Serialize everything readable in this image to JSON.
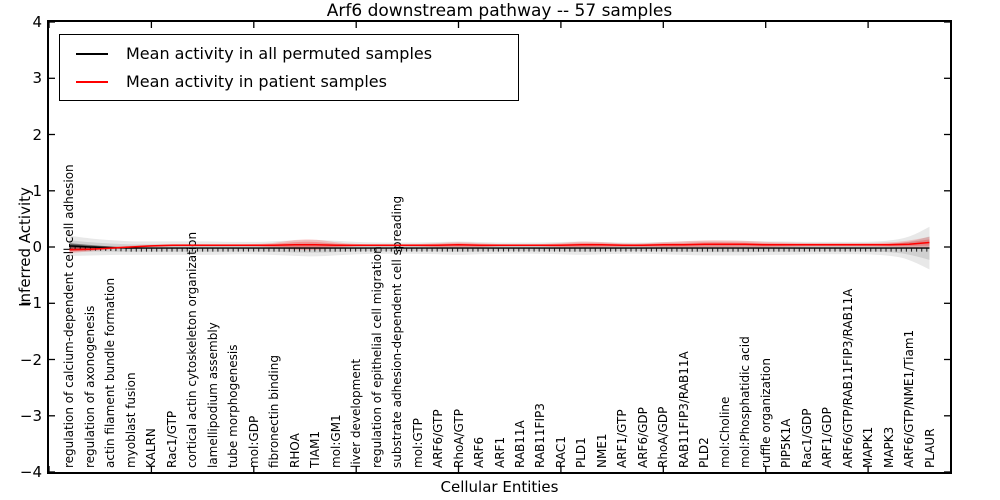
{
  "chart_data": {
    "type": "line",
    "title": "Arf6 downstream pathway -- 57 samples",
    "xlabel": "Cellular Entities",
    "ylabel": "Inferred Activity",
    "ylim": [
      -4,
      4
    ],
    "yticks": [
      4,
      3,
      2,
      1,
      0,
      -1,
      -2,
      -3,
      -4
    ],
    "grid": false,
    "legend_position": "upper left",
    "categories": [
      "regulation of calcium-dependent cell-cell adhesion",
      "regulation of axonogenesis",
      "actin filament bundle formation",
      "myoblast fusion",
      "KALRN",
      "Rac1/GTP",
      "cortical actin cytoskeleton organization",
      "lamellipodium assembly",
      "tube morphogenesis",
      "mol:GDP",
      "fibronectin binding",
      "RHOA",
      "TIAM1",
      "mol:GM1",
      "liver development",
      "regulation of epithelial cell migration",
      "substrate adhesion-dependent cell spreading",
      "mol:GTP",
      "ARF6/GTP",
      "RhoA/GTP",
      "ARF6",
      "ARF1",
      "RAB11A",
      "RAB11FIP3",
      "RAC1",
      "PLD1",
      "NME1",
      "ARF1/GTP",
      "ARF6/GDP",
      "RhoA/GDP",
      "RAB11FIP3/RAB11A",
      "PLD2",
      "mol:Choline",
      "mol:Phosphatidic acid",
      "ruffle organization",
      "PIP5K1A",
      "Rac1/GDP",
      "ARF1/GDP",
      "ARF6/GTP/RAB11FIP3/RAB11A",
      "MAPK1",
      "MAPK3",
      "ARF6/GTP/NME1/Tiam1",
      "PLAUR"
    ],
    "series": [
      {
        "name": "Mean activity in all permuted samples",
        "color": "#000000",
        "values": [
          0.02,
          0.0,
          -0.01,
          -0.02,
          -0.02,
          -0.02,
          -0.02,
          -0.02,
          -0.02,
          -0.02,
          -0.02,
          -0.02,
          -0.02,
          -0.02,
          -0.02,
          -0.02,
          -0.02,
          -0.02,
          -0.02,
          -0.02,
          -0.02,
          -0.02,
          -0.02,
          -0.02,
          -0.02,
          -0.02,
          -0.02,
          -0.02,
          -0.02,
          -0.02,
          -0.02,
          -0.02,
          -0.02,
          -0.02,
          -0.02,
          -0.02,
          -0.02,
          -0.02,
          -0.02,
          -0.02,
          -0.02,
          -0.02,
          -0.02
        ]
      },
      {
        "name": "Mean activity in patient samples",
        "color": "#ff0000",
        "values": [
          -0.05,
          -0.04,
          -0.02,
          0.0,
          0.02,
          0.03,
          0.03,
          0.03,
          0.03,
          0.03,
          0.03,
          0.04,
          0.04,
          0.03,
          0.03,
          0.03,
          0.03,
          0.03,
          0.03,
          0.04,
          0.03,
          0.03,
          0.03,
          0.03,
          0.03,
          0.04,
          0.04,
          0.03,
          0.03,
          0.04,
          0.04,
          0.05,
          0.05,
          0.05,
          0.04,
          0.04,
          0.04,
          0.04,
          0.04,
          0.04,
          0.04,
          0.05,
          0.08
        ]
      }
    ],
    "bands": [
      {
        "name": "permuted-envelope",
        "center_series": 0,
        "color": "rgba(0,0,0,0.09)",
        "inner_color": "rgba(0,0,0,0.10)",
        "halfwidths": [
          0.18,
          0.15,
          0.13,
          0.12,
          0.12,
          0.12,
          0.12,
          0.12,
          0.11,
          0.11,
          0.12,
          0.14,
          0.15,
          0.13,
          0.11,
          0.1,
          0.1,
          0.1,
          0.11,
          0.12,
          0.11,
          0.1,
          0.1,
          0.1,
          0.11,
          0.12,
          0.11,
          0.1,
          0.1,
          0.11,
          0.12,
          0.13,
          0.13,
          0.13,
          0.12,
          0.12,
          0.11,
          0.11,
          0.11,
          0.11,
          0.13,
          0.19,
          0.38
        ]
      },
      {
        "name": "permuted-left-bulge",
        "center_series": 0,
        "color": "rgba(25,25,25,0.45)",
        "inner_color": "rgba(25,25,25,0.45)",
        "halfwidths": [
          0.05,
          0.035,
          0.02,
          0.01,
          0.005,
          0,
          0,
          0,
          0,
          0,
          0,
          0,
          0,
          0,
          0,
          0,
          0,
          0,
          0,
          0,
          0,
          0,
          0,
          0,
          0,
          0,
          0,
          0,
          0,
          0,
          0,
          0,
          0,
          0,
          0,
          0,
          0,
          0,
          0,
          0,
          0,
          0,
          0
        ]
      },
      {
        "name": "patient-envelope",
        "center_series": 1,
        "color": "rgba(255,0,0,0.18)",
        "inner_color": "rgba(255,0,0,0.22)",
        "halfwidths": [
          0.06,
          0.04,
          0.02,
          0.02,
          0.02,
          0.02,
          0.02,
          0.02,
          0.02,
          0.02,
          0.04,
          0.09,
          0.1,
          0.05,
          0.02,
          0.02,
          0.02,
          0.02,
          0.04,
          0.05,
          0.04,
          0.02,
          0.02,
          0.02,
          0.04,
          0.06,
          0.05,
          0.03,
          0.03,
          0.05,
          0.06,
          0.07,
          0.07,
          0.06,
          0.05,
          0.04,
          0.03,
          0.03,
          0.03,
          0.03,
          0.04,
          0.06,
          0.1
        ]
      }
    ],
    "x_major_tick_units": [
      0,
      5,
      10,
      15,
      20,
      25,
      30,
      35,
      40
    ]
  },
  "legend": {
    "entries": [
      {
        "label": "Mean activity in all permuted samples",
        "color": "#000000"
      },
      {
        "label": "Mean activity in patient samples",
        "color": "#ff0000"
      }
    ]
  }
}
